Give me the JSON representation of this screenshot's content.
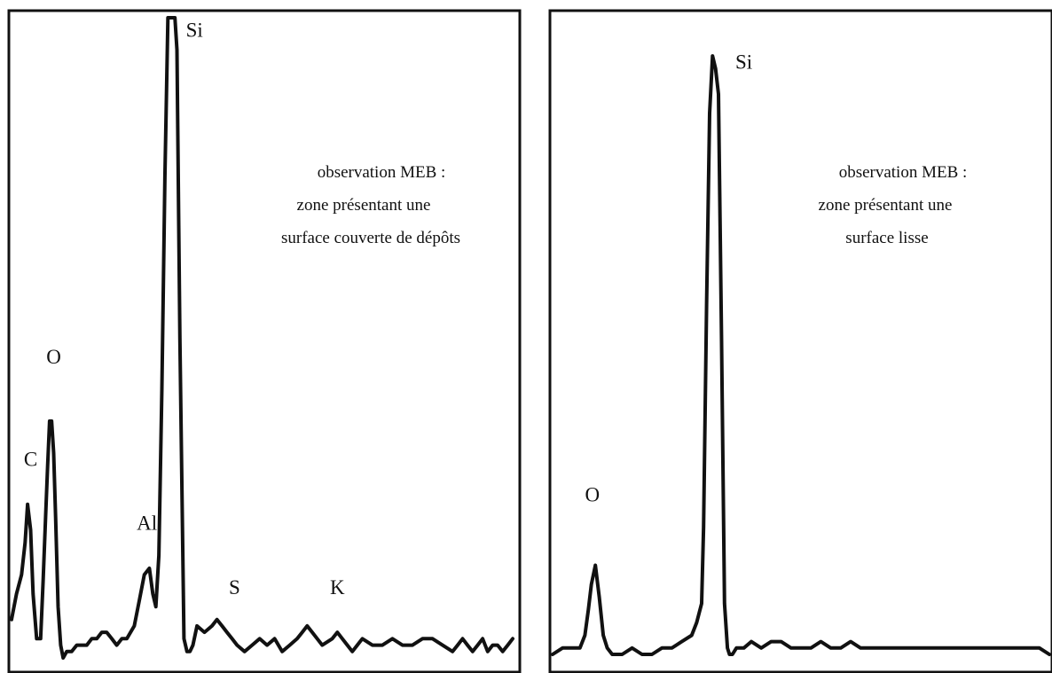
{
  "chart_data": [
    {
      "type": "line",
      "title": "",
      "xlabel": "",
      "ylabel": "",
      "grid": false,
      "legend": "none",
      "xlim": [
        0,
        100
      ],
      "ylim": [
        0,
        100
      ],
      "series": [
        {
          "color": "#111111",
          "x": [
            0,
            1.0,
            2.0,
            2.7,
            3.2,
            3.8,
            4.3,
            5.0,
            5.8,
            6.3,
            6.8,
            7.2,
            7.6,
            8.0,
            8.4,
            8.8,
            9.3,
            9.8,
            10.3,
            11.0,
            12.0,
            13.0,
            14.0,
            15.0,
            16.0,
            17.0,
            18.0,
            19.0,
            20.0,
            21.0,
            22.0,
            23.0,
            24.5,
            25.5,
            26.5,
            27.5,
            28.2,
            28.8,
            29.4,
            30.0,
            30.6,
            31.2,
            31.8,
            32.2,
            32.6,
            33.0,
            33.6,
            34.4,
            35.0,
            35.6,
            36.2,
            37.0,
            38.5,
            40.0,
            41.0,
            42.0,
            43.0,
            44.0,
            45.0,
            46.5,
            48.0,
            49.5,
            51.0,
            52.5,
            54.0,
            55.5,
            57.0,
            58.0,
            59.0,
            60.0,
            61.0,
            62.0,
            64.0,
            65.0,
            66.0,
            67.0,
            68.0,
            69.0,
            70.0,
            72.0,
            74.0,
            76.0,
            78.0,
            80.0,
            82.0,
            84.0,
            86.0,
            88.0,
            89.0,
            90.0,
            91.0,
            92.0,
            93.0,
            94.0,
            95.0,
            96.0,
            97.0,
            98.0,
            99.0,
            100
          ],
          "y": [
            6,
            10,
            13,
            18,
            24,
            20,
            10,
            3,
            3,
            12,
            22,
            30,
            37,
            37,
            32,
            22,
            8,
            2,
            0,
            1,
            1,
            2,
            2,
            2,
            3,
            3,
            4,
            4,
            3,
            2,
            3,
            3,
            5,
            9,
            13,
            14,
            10,
            8,
            16,
            42,
            75,
            100,
            100,
            100,
            100,
            95,
            50,
            3,
            1,
            1,
            2,
            5,
            4,
            5,
            6,
            5,
            4,
            3,
            2,
            1,
            2,
            3,
            2,
            3,
            1,
            2,
            3,
            4,
            5,
            4,
            3,
            2,
            3,
            4,
            3,
            2,
            1,
            2,
            3,
            2,
            2,
            3,
            2,
            2,
            3,
            3,
            2,
            1,
            2,
            3,
            2,
            1,
            2,
            3,
            1,
            2,
            2,
            1,
            2,
            3
          ]
        }
      ],
      "peak_labels": [
        {
          "text": "C",
          "x": 3.8,
          "y": 30
        },
        {
          "text": "O",
          "x": 8.4,
          "y": 46
        },
        {
          "text": "Al",
          "x": 27.0,
          "y": 20
        },
        {
          "text": "Si",
          "x": 36.5,
          "y": 97
        },
        {
          "text": "S",
          "x": 44.5,
          "y": 10
        },
        {
          "text": "K",
          "x": 65.0,
          "y": 10
        }
      ],
      "annotation": [
        "observation MEB :",
        "zone présentant une",
        "surface couverte de dépôts"
      ]
    },
    {
      "type": "line",
      "title": "",
      "xlabel": "",
      "ylabel": "",
      "grid": false,
      "legend": "none",
      "xlim": [
        0,
        100
      ],
      "ylim": [
        0,
        100
      ],
      "series": [
        {
          "color": "#111111",
          "x": [
            0,
            2.0,
            4.0,
            5.5,
            6.5,
            7.2,
            7.8,
            8.6,
            9.4,
            10.2,
            11.0,
            12.0,
            14.0,
            16.0,
            18.0,
            20.0,
            22.0,
            24.0,
            26.0,
            28.0,
            29.0,
            30.0,
            30.4,
            31.0,
            31.6,
            32.2,
            32.8,
            33.4,
            34.0,
            34.6,
            35.2,
            35.6,
            36.2,
            37.0,
            38.5,
            40.0,
            42.0,
            44.0,
            46.0,
            48.0,
            50.0,
            52.0,
            54.0,
            56.0,
            58.0,
            60.0,
            62.0,
            64.0,
            66.0,
            68.0,
            70.0,
            72.0,
            74.0,
            76.0,
            78.0,
            80.0,
            82.0,
            84.0,
            86.0,
            88.0,
            90.0,
            92.0,
            94.0,
            96.0,
            98.0,
            100
          ],
          "y": [
            0,
            1,
            1,
            1,
            3,
            7,
            11,
            14,
            9,
            3,
            1,
            0,
            0,
            1,
            0,
            0,
            1,
            1,
            2,
            3,
            5,
            8,
            20,
            55,
            85,
            94,
            92,
            88,
            50,
            8,
            1,
            0,
            0,
            1,
            1,
            2,
            1,
            2,
            2,
            1,
            1,
            1,
            2,
            1,
            1,
            2,
            1,
            1,
            1,
            1,
            1,
            1,
            1,
            1,
            1,
            1,
            1,
            1,
            1,
            1,
            1,
            1,
            1,
            1,
            1,
            0
          ]
        }
      ],
      "peak_labels": [
        {
          "text": "O",
          "x": 8.0,
          "y": 24
        },
        {
          "text": "Si",
          "x": 38.5,
          "y": 92
        }
      ],
      "annotation": [
        "observation MEB :",
        "zone présentant une",
        "surface lisse"
      ]
    }
  ]
}
